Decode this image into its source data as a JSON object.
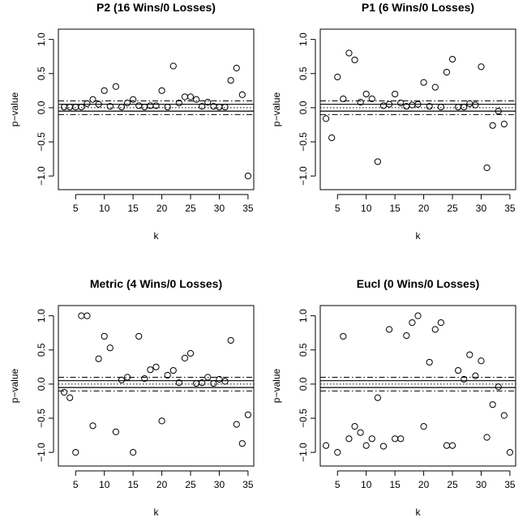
{
  "chart_data": [
    {
      "type": "scatter",
      "title": "P2 (16 Wins/0 Losses)",
      "xlabel": "k",
      "ylabel": "p−value",
      "xlim": [
        2,
        36
      ],
      "ylim": [
        -1.2,
        1.15
      ],
      "xticks": [
        "5",
        "10",
        "15",
        "20",
        "25",
        "30",
        "35"
      ],
      "yticks": [
        "−1.0",
        "−0.5",
        "0.0",
        "0.5",
        "1.0"
      ],
      "reference_lines": {
        "solid": [
          0.05,
          -0.05
        ],
        "dotted": [
          0.0
        ],
        "dashdot": [
          0.1,
          -0.1
        ]
      },
      "x": [
        3,
        4,
        5,
        6,
        7,
        8,
        9,
        10,
        11,
        12,
        13,
        14,
        15,
        16,
        17,
        18,
        19,
        20,
        21,
        22,
        23,
        24,
        25,
        26,
        27,
        28,
        29,
        30,
        31,
        32,
        33,
        34,
        35
      ],
      "y": [
        0.01,
        0.01,
        0.01,
        0.01,
        0.06,
        0.12,
        0.05,
        0.25,
        0.02,
        0.31,
        0.01,
        0.07,
        0.12,
        0.03,
        0.01,
        0.03,
        0.03,
        0.25,
        0.01,
        0.61,
        0.07,
        0.16,
        0.16,
        0.12,
        0.02,
        0.08,
        0.02,
        0.01,
        0.01,
        0.4,
        0.58,
        0.19,
        -1.0
      ]
    },
    {
      "type": "scatter",
      "title": "P1 (6 Wins/0 Losses)",
      "xlabel": "k",
      "ylabel": "p−value",
      "xlim": [
        2,
        36
      ],
      "ylim": [
        -1.2,
        1.15
      ],
      "xticks": [
        "5",
        "10",
        "15",
        "20",
        "25",
        "30",
        "35"
      ],
      "yticks": [
        "−1.0",
        "−0.5",
        "0.0",
        "0.5",
        "1.0"
      ],
      "reference_lines": {
        "solid": [
          0.05,
          -0.05
        ],
        "dotted": [
          0.0
        ],
        "dashdot": [
          0.1,
          -0.1
        ]
      },
      "x": [
        3,
        4,
        5,
        6,
        7,
        8,
        9,
        10,
        11,
        12,
        13,
        14,
        15,
        16,
        17,
        18,
        19,
        20,
        21,
        22,
        23,
        24,
        25,
        26,
        27,
        28,
        29,
        30,
        31,
        32,
        33,
        34
      ],
      "y": [
        -0.16,
        -0.44,
        0.45,
        0.13,
        0.8,
        0.7,
        0.08,
        0.2,
        0.13,
        -0.79,
        0.03,
        0.05,
        0.2,
        0.07,
        0.02,
        0.04,
        0.05,
        0.37,
        0.02,
        0.3,
        0.01,
        0.52,
        0.71,
        0.01,
        0.01,
        0.06,
        0.04,
        0.6,
        -0.88,
        -0.26,
        -0.05,
        -0.24
      ]
    },
    {
      "type": "scatter",
      "title": "Metric (4 Wins/0 Losses)",
      "xlabel": "k",
      "ylabel": "p−value",
      "xlim": [
        2,
        36
      ],
      "ylim": [
        -1.2,
        1.15
      ],
      "xticks": [
        "5",
        "10",
        "15",
        "20",
        "25",
        "30",
        "35"
      ],
      "yticks": [
        "−1.0",
        "−0.5",
        "0.0",
        "0.5",
        "1.0"
      ],
      "reference_lines": {
        "solid": [
          0.05,
          -0.05
        ],
        "dotted": [
          0.0
        ],
        "dashdot": [
          0.1,
          -0.1
        ]
      },
      "x": [
        3,
        4,
        5,
        6,
        7,
        8,
        9,
        10,
        11,
        12,
        13,
        14,
        15,
        16,
        17,
        18,
        19,
        20,
        21,
        22,
        23,
        24,
        25,
        26,
        27,
        28,
        29,
        30,
        31,
        32,
        33,
        34,
        35
      ],
      "y": [
        -0.12,
        -0.2,
        -1.0,
        1.0,
        1.0,
        -0.61,
        0.37,
        0.7,
        0.53,
        -0.7,
        0.06,
        0.1,
        -1.0,
        0.7,
        0.08,
        0.21,
        0.25,
        -0.54,
        0.13,
        0.2,
        0.02,
        0.38,
        0.45,
        0.01,
        0.02,
        0.1,
        0.01,
        0.07,
        0.04,
        0.64,
        -0.59,
        -0.87,
        -0.45
      ]
    },
    {
      "type": "scatter",
      "title": "Eucl (0 Wins/0 Losses)",
      "xlabel": "k",
      "ylabel": "p−value",
      "xlim": [
        2,
        36
      ],
      "ylim": [
        -1.2,
        1.15
      ],
      "xticks": [
        "5",
        "10",
        "15",
        "20",
        "25",
        "30",
        "35"
      ],
      "yticks": [
        "−1.0",
        "−0.5",
        "0.0",
        "0.5",
        "1.0"
      ],
      "reference_lines": {
        "solid": [
          0.05,
          -0.05
        ],
        "dotted": [
          0.0
        ],
        "dashdot": [
          0.1,
          -0.1
        ]
      },
      "x": [
        3,
        5,
        6,
        7,
        8,
        9,
        10,
        11,
        12,
        13,
        14,
        15,
        16,
        17,
        18,
        19,
        20,
        21,
        22,
        23,
        24,
        25,
        26,
        27,
        28,
        29,
        30,
        31,
        32,
        33,
        34,
        35
      ],
      "y": [
        -0.9,
        -1.0,
        0.7,
        -0.8,
        -0.62,
        -0.71,
        -0.9,
        -0.8,
        -0.2,
        -0.91,
        0.8,
        -0.8,
        -0.8,
        0.71,
        0.9,
        1.0,
        -0.62,
        0.32,
        0.8,
        0.9,
        -0.9,
        -0.9,
        0.2,
        0.07,
        0.43,
        0.12,
        0.34,
        -0.78,
        -0.3,
        -0.04,
        -0.46,
        -1.0
      ]
    }
  ]
}
